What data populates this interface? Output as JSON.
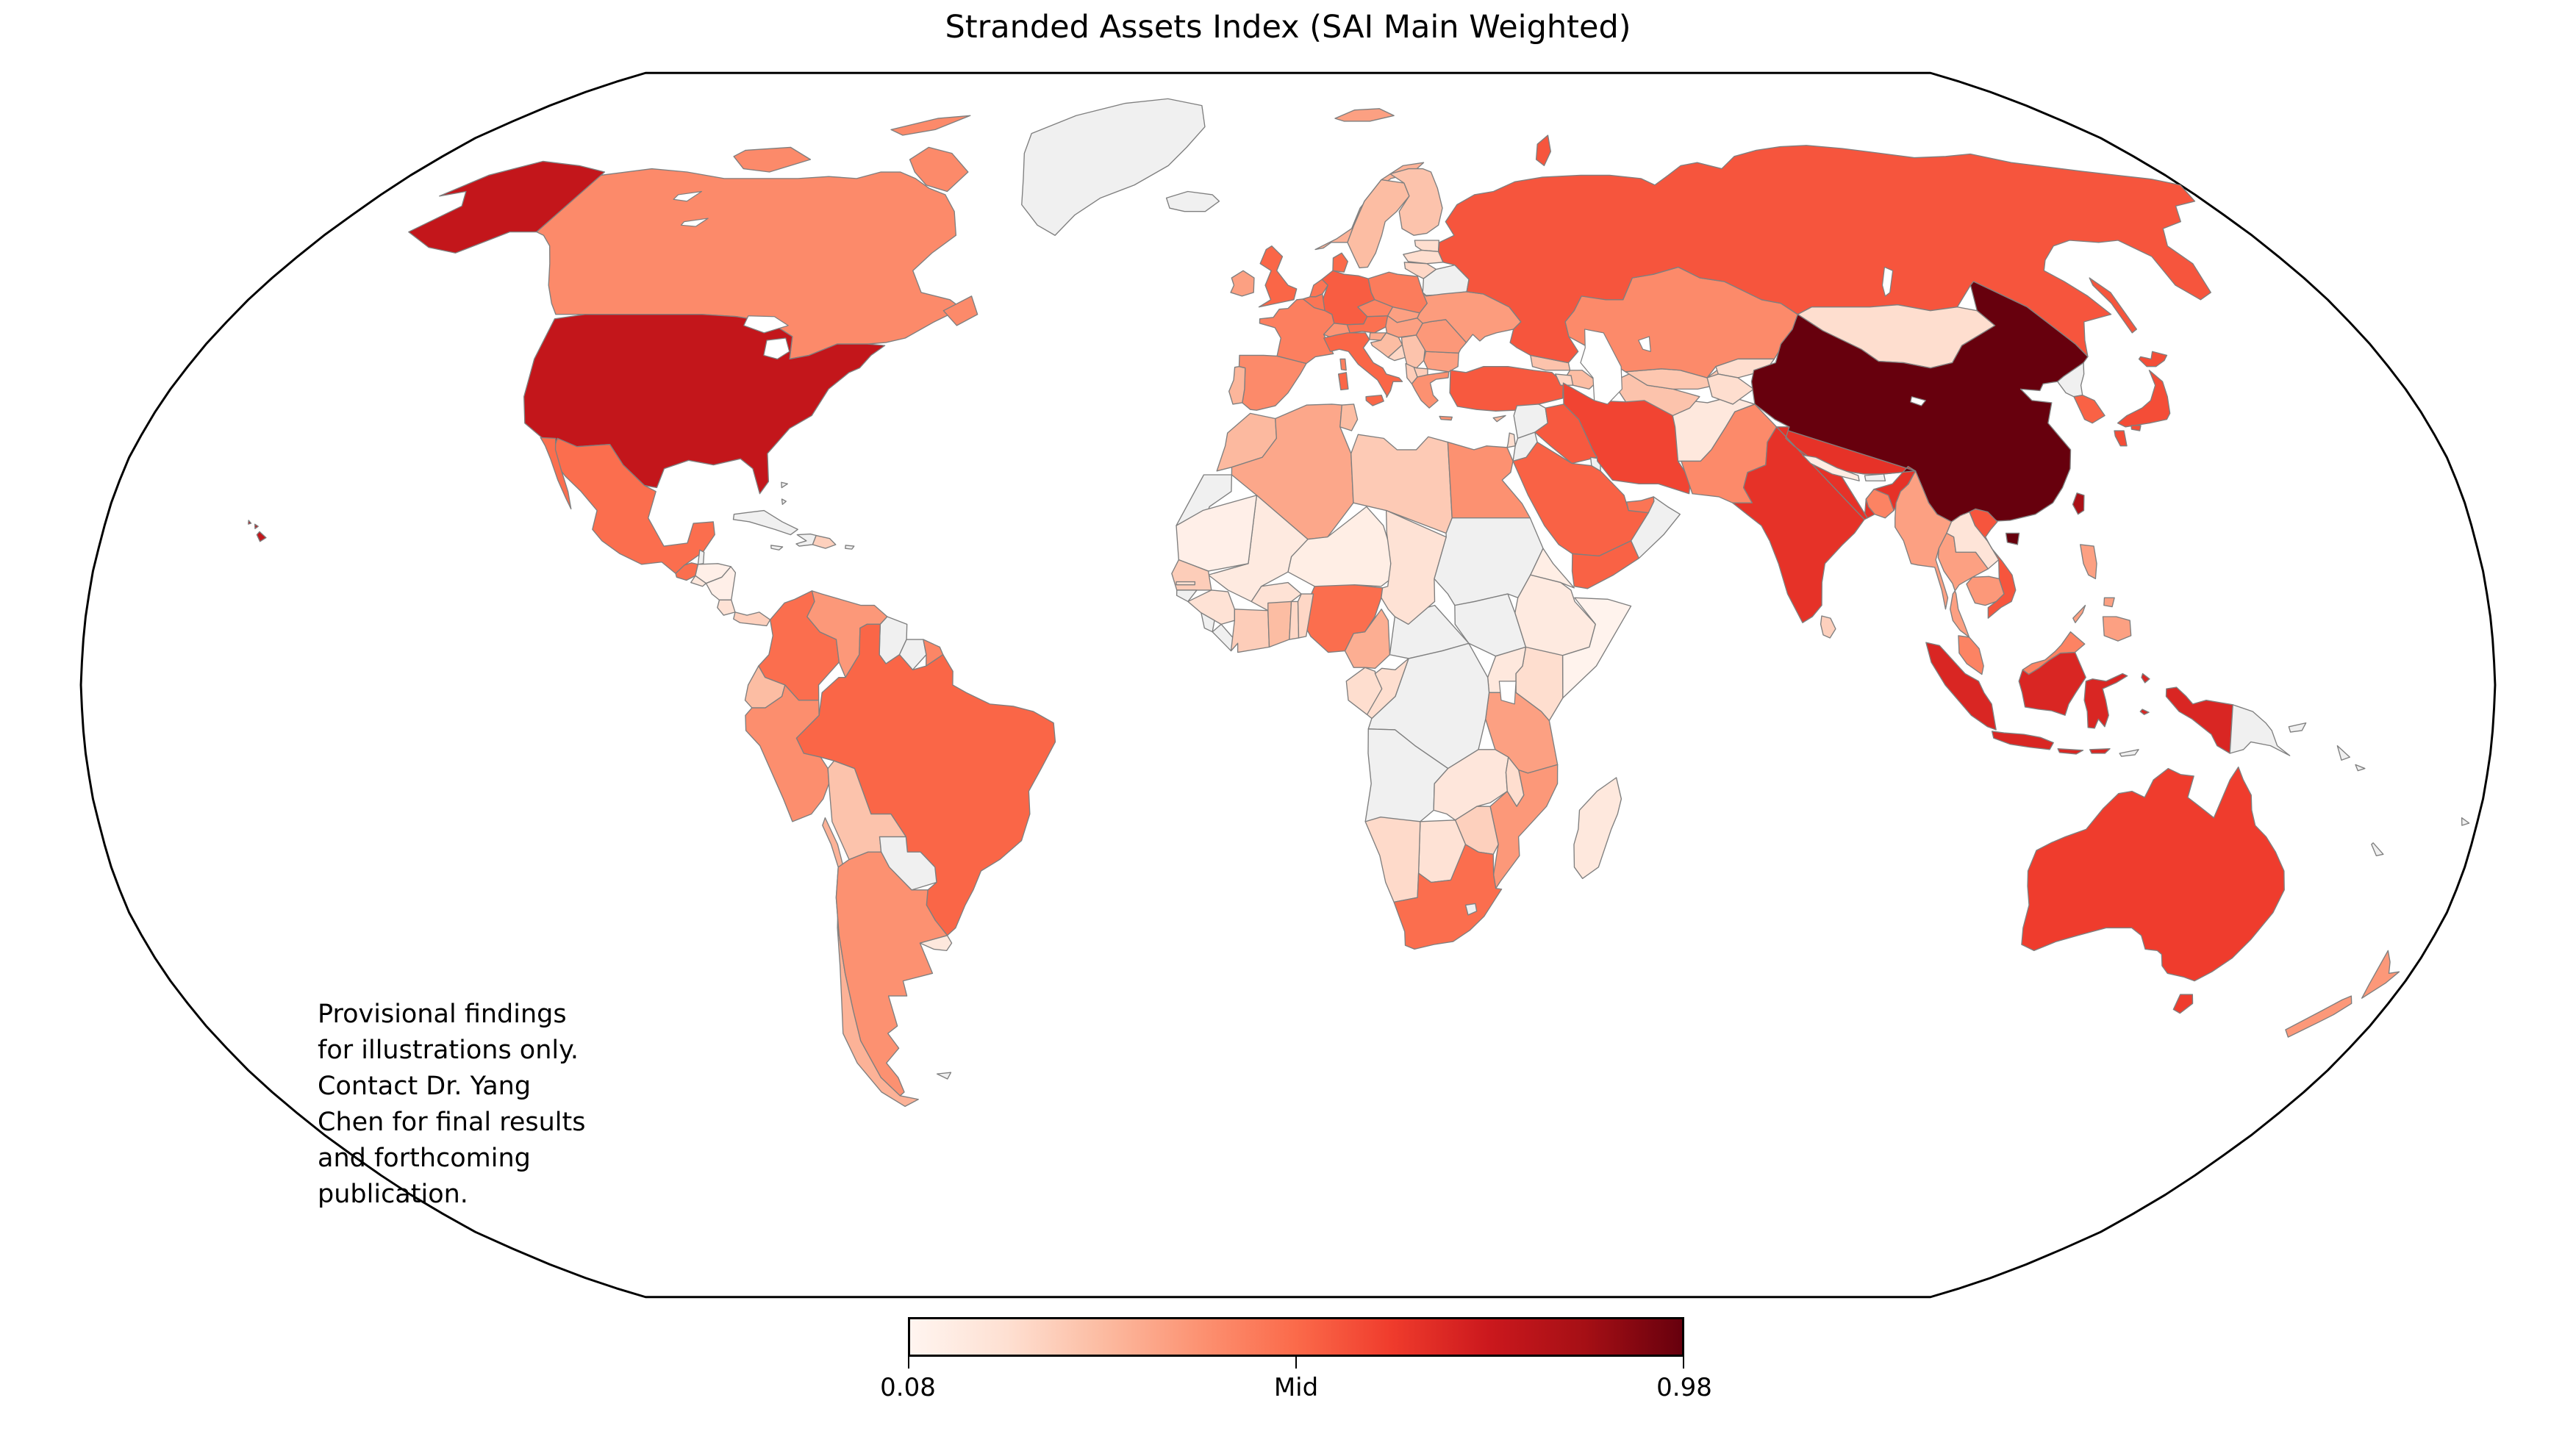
{
  "figure": {
    "title": "Stranded Assets Index (SAI Main Weighted)",
    "annotation": "Provisional findings\nfor illustrations only.\nContact Dr. Yang\nChen for final results\nand forthcoming\npublication."
  },
  "colorbar": {
    "min_label": "0.08",
    "mid_label": "Mid",
    "max_label": "0.98",
    "colormap": "Reds",
    "stops": [
      "#fff5f0",
      "#fee0d2",
      "#fcbba1",
      "#fc9272",
      "#fb6a4a",
      "#ef3b2c",
      "#cb181d",
      "#a50f15",
      "#67000d"
    ]
  },
  "map": {
    "projection": "Robinson",
    "no_data_color": "#f0f0f0",
    "border_color": "#7f7f7f",
    "outline_color": "#000000",
    "ocean_color": "#ffffff"
  },
  "chart_data": {
    "type": "choropleth",
    "title": "Stranded Assets Index (SAI Main Weighted)",
    "metric": "SAI Main Weighted",
    "scale": {
      "min": 0.08,
      "max": 0.98,
      "mid_tick_label": "Mid",
      "colormap": "Reds",
      "no_data": "gray"
    },
    "values": {
      "China": 0.98,
      "Taiwan": 0.85,
      "United States": 0.78,
      "Indonesia": 0.71,
      "India": 0.67,
      "Australia": 0.64,
      "Iran": 0.62,
      "Japan": 0.6,
      "Vietnam": 0.58,
      "Russia": 0.58,
      "Turkey": 0.57,
      "Iraq": 0.57,
      "Germany": 0.56,
      "South Korea": 0.55,
      "Saudi Arabia": 0.55,
      "Yemen": 0.55,
      "Brazil": 0.54,
      "United Kingdom": 0.54,
      "Italy": 0.54,
      "Denmark": 0.53,
      "Mexico": 0.52,
      "Colombia": 0.52,
      "Nigeria": 0.52,
      "South Africa": 0.52,
      "Guatemala": 0.52,
      "Austria": 0.51,
      "Netherlands": 0.5,
      "Belgium": 0.5,
      "United Arab Emirates": 0.5,
      "Poland": 0.48,
      "France": 0.47,
      "Czechia": 0.46,
      "Bangladesh": 0.46,
      "Malaysia": 0.46,
      "French Guiana": 0.45,
      "Canada": 0.44,
      "Kazakhstan": 0.44,
      "Pakistan": 0.44,
      "Spain": 0.44,
      "Peru": 0.43,
      "Argentina": 0.42,
      "Greece": 0.42,
      "Egypt": 0.42,
      "Switzerland": 0.41,
      "Venezuela": 0.4,
      "Mozambique": 0.4,
      "Romania": 0.4,
      "Cambodia": 0.4,
      "New Zealand": 0.4,
      "Ukraine": 0.39,
      "Thailand": 0.38,
      "Myanmar": 0.38,
      "Philippines": 0.38,
      "Tanzania": 0.38,
      "Hungary": 0.38,
      "Bulgaria": 0.38,
      "Ireland": 0.38,
      "Slovakia": 0.38,
      "Svalbard": 0.38,
      "Algeria": 0.36,
      "Slovenia": 0.35,
      "Cameroon": 0.34,
      "Norway": 0.33,
      "Chile": 0.33,
      "Portugal": 0.32,
      "Morocco": 0.31,
      "Tunisia": 0.3,
      "Sweden": 0.3,
      "Ecuador": 0.3,
      "Ghana": 0.3,
      "Azerbaijan": 0.3,
      "Croatia": 0.3,
      "Cyprus": 0.3,
      "Finland": 0.28,
      "Turkmenistan": 0.28,
      "Bolivia": 0.28,
      "Serbia": 0.28,
      "Georgia": 0.28,
      "Uzbekistan": 0.27,
      "Libya": 0.26,
      "Senegal": 0.25,
      "Ivory Coast": 0.25,
      "Albania": 0.25,
      "North Macedonia": 0.25,
      "Dominican Republic": 0.24,
      "Panama": 0.24,
      "Zimbabwe": 0.24,
      "Sri Lanka": 0.24,
      "Bosnia and Herzegovina": 0.22,
      "Togo": 0.22,
      "Benin": 0.22,
      "Armenia": 0.22,
      "Lithuania": 0.22,
      "Namibia": 0.21,
      "Kenya": 0.2,
      "Mongolia": 0.2,
      "Republic of the Congo": 0.2,
      "Gabon": 0.2,
      "Israel": 0.2,
      "Estonia": 0.2,
      "Latvia": 0.2,
      "Kyrgyzstan": 0.2,
      "Tajikistan": 0.2,
      "Malawi": 0.2,
      "Gambia": 0.2,
      "Costa Rica": 0.18,
      "Botswana": 0.18,
      "Chad": 0.18,
      "Burkina Faso": 0.18,
      "Guinea": 0.18,
      "Laos": 0.17,
      "Zambia": 0.16,
      "Uganda": 0.15,
      "Afghanistan": 0.15,
      "Uruguay": 0.15,
      "Madagascar": 0.15,
      "El Salvador": 0.15,
      "Ethiopia": 0.14,
      "Mali": 0.14,
      "Nepal": 0.13,
      "Eritrea": 0.12,
      "Niger": 0.12,
      "Honduras": 0.11,
      "Nicaragua": 0.11,
      "Mauritania": 0.11,
      "Somalia": 0.09
    },
    "no_data": [
      "Greenland",
      "Iceland",
      "Belarus",
      "North Korea",
      "Cuba",
      "Haiti",
      "Jamaica",
      "Bahamas",
      "Puerto Rico",
      "Belize",
      "Guyana",
      "Suriname",
      "Paraguay",
      "Falkland Islands",
      "Western Sahara",
      "Sudan",
      "South Sudan",
      "DR Congo",
      "Angola",
      "Central African Republic",
      "Lesotho",
      "Guinea-Bissau",
      "Sierra Leone",
      "Liberia",
      "Syria",
      "Jordan",
      "Oman",
      "Kuwait",
      "Bhutan",
      "Papua New Guinea",
      "Timor-Leste",
      "New Caledonia",
      "Fiji",
      "Solomon Islands"
    ]
  }
}
